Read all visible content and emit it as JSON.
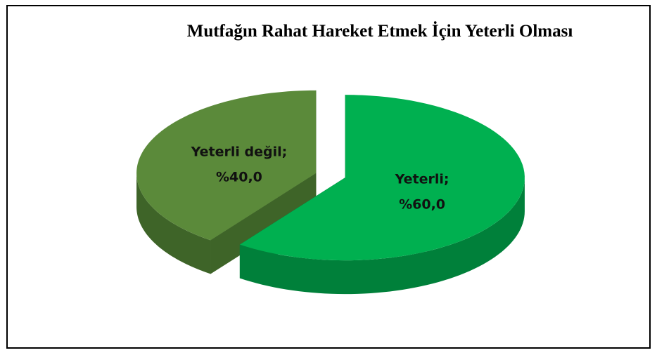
{
  "chart_data": {
    "type": "pie3d",
    "title": "Mutfağın Rahat Hareket Etmek İçin Yeterli Olması",
    "categories": [
      "Yeterli",
      "Yeterli değil"
    ],
    "values": [
      60,
      40
    ],
    "value_labels": [
      "%60,0",
      "%40,0"
    ],
    "label_separator": ";",
    "colors": [
      "#00b050",
      "#5b8a3a"
    ],
    "side_colors": [
      "#00803a",
      "#3e6428"
    ]
  }
}
